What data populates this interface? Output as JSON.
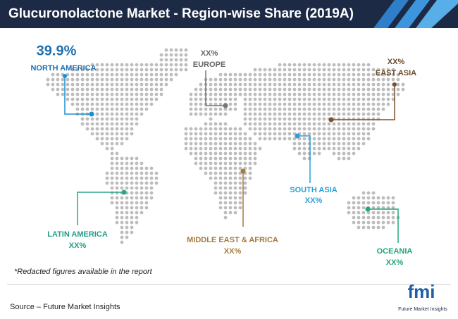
{
  "header": {
    "title": "Glucuronolactone Market - Region-wise Share (2019A)"
  },
  "regions": [
    {
      "name": "NORTH AMERICA",
      "share": "39.9%"
    },
    {
      "name": "EUROPE",
      "share": "XX%"
    },
    {
      "name": "EAST ASIA",
      "share": "XX%"
    },
    {
      "name": "LATIN AMERICA",
      "share": "XX%"
    },
    {
      "name": "MIDDLE EAST & AFRICA",
      "share": "XX%"
    },
    {
      "name": "SOUTH ASIA",
      "share": "XX%"
    },
    {
      "name": "OCEANIA",
      "share": "XX%"
    }
  ],
  "footnote": "*Redacted figures available in the report",
  "source": "Source – Future Market Insights",
  "logo": {
    "mark": "fmi",
    "text": "Future Market Insights"
  }
}
